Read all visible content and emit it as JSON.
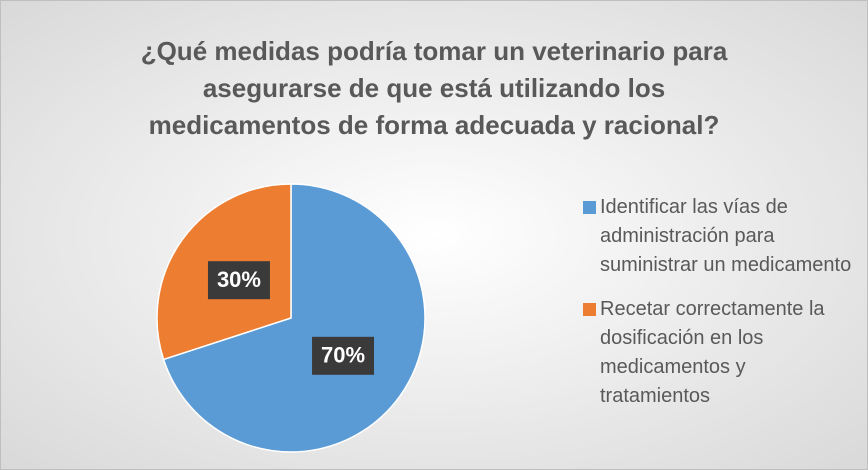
{
  "chart_data": {
    "type": "pie",
    "title": [
      "¿Qué medidas podría tomar un veterinario para",
      "asegurarse de que está utilizando los",
      "medicamentos de forma adecuada y racional?"
    ],
    "categories": [
      "Identificar las vías de administración para suministrar un medicamento",
      "Recetar correctamente la dosificación en los medicamentos y tratamientos"
    ],
    "values": [
      70,
      30
    ],
    "value_labels": [
      "70%",
      "30%"
    ],
    "colors": [
      "#5b9bd5",
      "#ed7d31"
    ],
    "legend": "right"
  }
}
